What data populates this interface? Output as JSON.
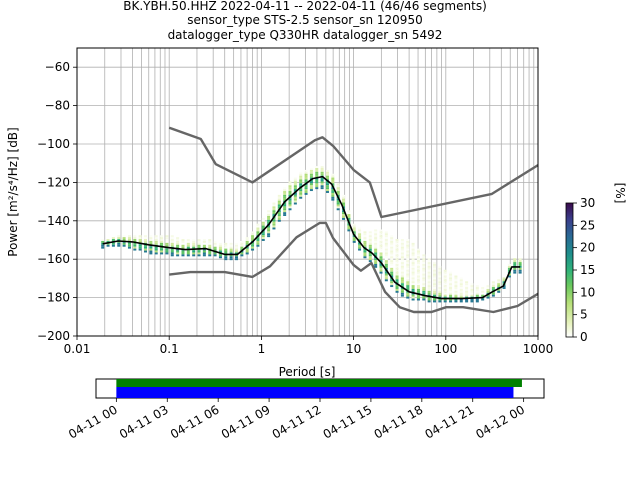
{
  "title_lines": [
    "BK.YBH.50.HHZ   2022-04-11 -- 2022-04-11  (46/46 segments)",
    "sensor_type STS-2.5 sensor_sn 120950",
    "datalogger_type Q330HR datalogger_sn 5492"
  ],
  "chart_data": [
    {
      "type": "heatmap",
      "title": "BK.YBH.50.HHZ   2022-04-11 -- 2022-04-11  (46/46 segments)",
      "xlabel": "Period [s]",
      "ylabel": "Power [m²/s⁴/Hz] [dB]",
      "xscale": "log",
      "xlim": [
        0.01,
        1000
      ],
      "ylim": [
        -200,
        -50
      ],
      "grid": true,
      "x_tick_labels": [
        "0.01",
        "0.1",
        "1",
        "10",
        "100",
        "1000"
      ],
      "y_tick_labels": [
        "−60",
        "−80",
        "−100",
        "−120",
        "−140",
        "−160",
        "−180",
        "−200"
      ],
      "x_ticks": [
        0.01,
        0.1,
        1,
        10,
        100,
        1000
      ],
      "y_ticks": [
        -60,
        -80,
        -100,
        -120,
        -140,
        -160,
        -180,
        -200
      ],
      "colorbar": {
        "label": "[%]",
        "range": [
          0,
          30
        ],
        "tick_labels": [
          "0",
          "5",
          "10",
          "15",
          "20",
          "25",
          "30"
        ],
        "ticks": [
          0,
          5,
          10,
          15,
          20,
          25,
          30
        ]
      },
      "series": [
        {
          "style": "mean",
          "color": "#000000",
          "x": [
            0.019,
            0.028,
            0.04,
            0.06,
            0.1,
            0.15,
            0.25,
            0.4,
            0.55,
            0.8,
            1.2,
            1.8,
            2.6,
            3.6,
            4.6,
            5.8,
            7.5,
            10,
            13,
            16,
            20,
            28,
            40,
            60,
            90,
            150,
            250,
            320,
            420,
            520,
            640
          ],
          "y": [
            -152,
            -150.5,
            -151,
            -152.5,
            -154,
            -155,
            -154.5,
            -157.5,
            -157.5,
            -151,
            -142,
            -130,
            -123,
            -118,
            -117,
            -121,
            -132,
            -147,
            -154,
            -157,
            -162,
            -172,
            -177,
            -179,
            -180.5,
            -180.5,
            -180,
            -177,
            -174,
            -164,
            -164
          ]
        },
        {
          "style": "noise model",
          "color": "#666666",
          "x": [
            0.1,
            0.22,
            0.32,
            0.8,
            3.8,
            4.6,
            6,
            10,
            15,
            20,
            316,
            1000
          ],
          "y": [
            -91.5,
            -97.4,
            -110.5,
            -120,
            -98,
            -96.5,
            -101,
            -113.5,
            -120,
            -138,
            -126,
            -111
          ]
        },
        {
          "style": "noise model",
          "color": "#666666",
          "x": [
            0.1,
            0.17,
            0.4,
            0.8,
            1.24,
            2.4,
            4.3,
            5,
            6,
            10,
            12,
            15.6,
            21.9,
            31.6,
            45,
            70,
            101,
            154,
            328,
            600,
            1000
          ],
          "y": [
            -168,
            -166.7,
            -166.7,
            -169.2,
            -163.7,
            -148.6,
            -141.1,
            -141.1,
            -149,
            -163,
            -166,
            -162,
            -177,
            -185,
            -187.5,
            -187.5,
            -185,
            -185,
            -187.5,
            -184.4,
            -178
          ]
        }
      ],
      "probability_density_band": {
        "x": [
          0.019,
          0.028,
          0.04,
          0.06,
          0.1,
          0.15,
          0.25,
          0.4,
          0.55,
          0.8,
          1.2,
          1.8,
          2.6,
          3.6,
          4.6,
          5.8,
          7.5,
          10,
          13,
          16,
          20,
          28,
          40,
          60,
          90,
          150,
          250,
          320,
          420,
          520,
          640
        ],
        "low": [
          -154,
          -153,
          -155,
          -157,
          -158,
          -159,
          -158,
          -160,
          -160,
          -156,
          -148,
          -137,
          -129,
          -124,
          -123,
          -128,
          -138,
          -151,
          -159,
          -162,
          -168,
          -177,
          -181,
          -182,
          -183,
          -182,
          -182,
          -180,
          -176,
          -167,
          -167
        ],
        "high": [
          -150,
          -148,
          -149,
          -150,
          -151,
          -152,
          -152,
          -154,
          -155,
          -147,
          -136,
          -124,
          -117,
          -113,
          -113,
          -116,
          -126,
          -143,
          -150,
          -152,
          -156,
          -166,
          -172,
          -175,
          -178,
          -179,
          -178,
          -174,
          -171,
          -160,
          -160
        ],
        "faint_high": [
          -150,
          -148,
          -147,
          -148,
          -147,
          -150,
          -149,
          -152,
          -152,
          -146,
          -134,
          -122,
          -115,
          -112,
          -112,
          -115,
          -124,
          -141,
          -146,
          -145,
          -144,
          -149,
          -150,
          -158,
          -164,
          -170,
          -175,
          -172,
          -170,
          -160,
          -160
        ]
      }
    },
    {
      "type": "bar",
      "title": "",
      "x_tick_labels": [
        "04-11 00",
        "04-11 03",
        "04-11 06",
        "04-11 09",
        "04-11 12",
        "04-11 15",
        "04-11 18",
        "04-11 21",
        "04-12 00"
      ],
      "x_ticks_hours": [
        0,
        3,
        6,
        9,
        12,
        15,
        18,
        21,
        24
      ],
      "xlim_hours": [
        -1.2,
        25.2
      ],
      "bars": [
        {
          "color": "#008000",
          "start_hour": 0,
          "end_hour": 23.9
        },
        {
          "color": "#0000ff",
          "start_hour": 0,
          "end_hour": 23.4
        }
      ]
    }
  ]
}
